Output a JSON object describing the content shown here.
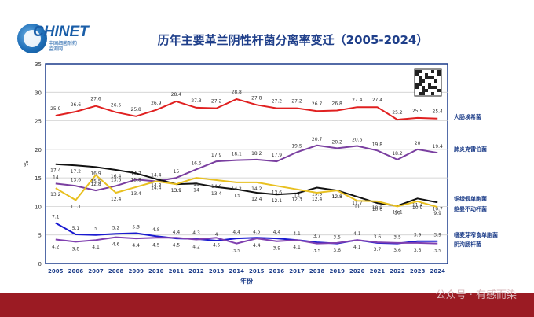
{
  "logo": {
    "text": "CHINET",
    "sub1": "中国细菌耐药",
    "sub2": "监测网"
  },
  "title": "历年主要革兰阴性杆菌分离率变迁（2005-2024）",
  "watermark": "公众号 · 有感而染",
  "colors": {
    "plot_border": "#1a3a8a",
    "grid": "#c8c8c8",
    "legend_text": "#1f3f8a",
    "footer": "#9b1b23"
  },
  "chart_data": {
    "type": "line",
    "title": "历年主要革兰阴性杆菌分离率变迁（2005-2024）",
    "xlabel": "年份",
    "ylabel": "%",
    "ylim": [
      0,
      35
    ],
    "yticks": [
      0,
      5,
      10,
      15,
      20,
      25,
      30,
      35
    ],
    "grid": true,
    "legend_placement": "right",
    "x": [
      "2005",
      "2006",
      "2007",
      "2008",
      "2009",
      "2010",
      "2011",
      "2012",
      "2013",
      "2014",
      "2015",
      "2016",
      "2017",
      "2018",
      "2019",
      "2020",
      "2021",
      "2022",
      "2023",
      "2024"
    ],
    "series": [
      {
        "name": "大肠埃希菌",
        "color": "#e02020",
        "values": [
          25.9,
          26.6,
          27.6,
          26.5,
          25.8,
          26.9,
          28.4,
          27.3,
          27.2,
          28.8,
          27.8,
          27.2,
          27.2,
          26.7,
          26.8,
          27.4,
          27.4,
          25.2,
          25.5,
          25.4
        ]
      },
      {
        "name": "肺炎克雷伯菌",
        "color": "#7a3fa0",
        "values": [
          14,
          13.6,
          12.8,
          13.6,
          14.7,
          14.4,
          15,
          16.5,
          17.9,
          18.1,
          18.2,
          17.9,
          19.5,
          20.7,
          20.2,
          20.6,
          19.8,
          18.2,
          20,
          19.4
        ]
      },
      {
        "name": "铜绿假单胞菌",
        "color": "#111111",
        "values": [
          17.4,
          17.2,
          16.9,
          16.4,
          15.8,
          14.8,
          13.9,
          14,
          13.4,
          13,
          12.4,
          12.1,
          12.3,
          13.3,
          12.8,
          11.7,
          10.6,
          10.1,
          11.4,
          10.7
        ]
      },
      {
        "name": "鲍曼不动杆菌",
        "color": "#e8c020",
        "values": [
          13.2,
          11.1,
          15.5,
          12.4,
          13.4,
          14.4,
          13.9,
          15,
          14.6,
          14.2,
          14.2,
          13.6,
          13,
          12.4,
          12.8,
          11,
          10.9,
          10,
          10.9,
          9.9
        ]
      },
      {
        "name": "嗜麦芽窄食单胞菌",
        "color": "#1a1ad0",
        "values": [
          7.1,
          5.1,
          5,
          5.2,
          5.3,
          4.8,
          4.4,
          4.3,
          4,
          4.4,
          4.5,
          4.4,
          4.1,
          3.7,
          3.5,
          4.1,
          3.6,
          3.5,
          3.9,
          3.9
        ]
      },
      {
        "name": "阴沟肠杆菌",
        "color": "#8040b0",
        "values": [
          4.2,
          3.8,
          4.1,
          4.6,
          4.4,
          4.5,
          4.5,
          4.2,
          4.5,
          3.5,
          4.4,
          3.9,
          4.1,
          3.5,
          3.6,
          4.1,
          3.7,
          3.6,
          3.6,
          3.5
        ]
      }
    ]
  }
}
